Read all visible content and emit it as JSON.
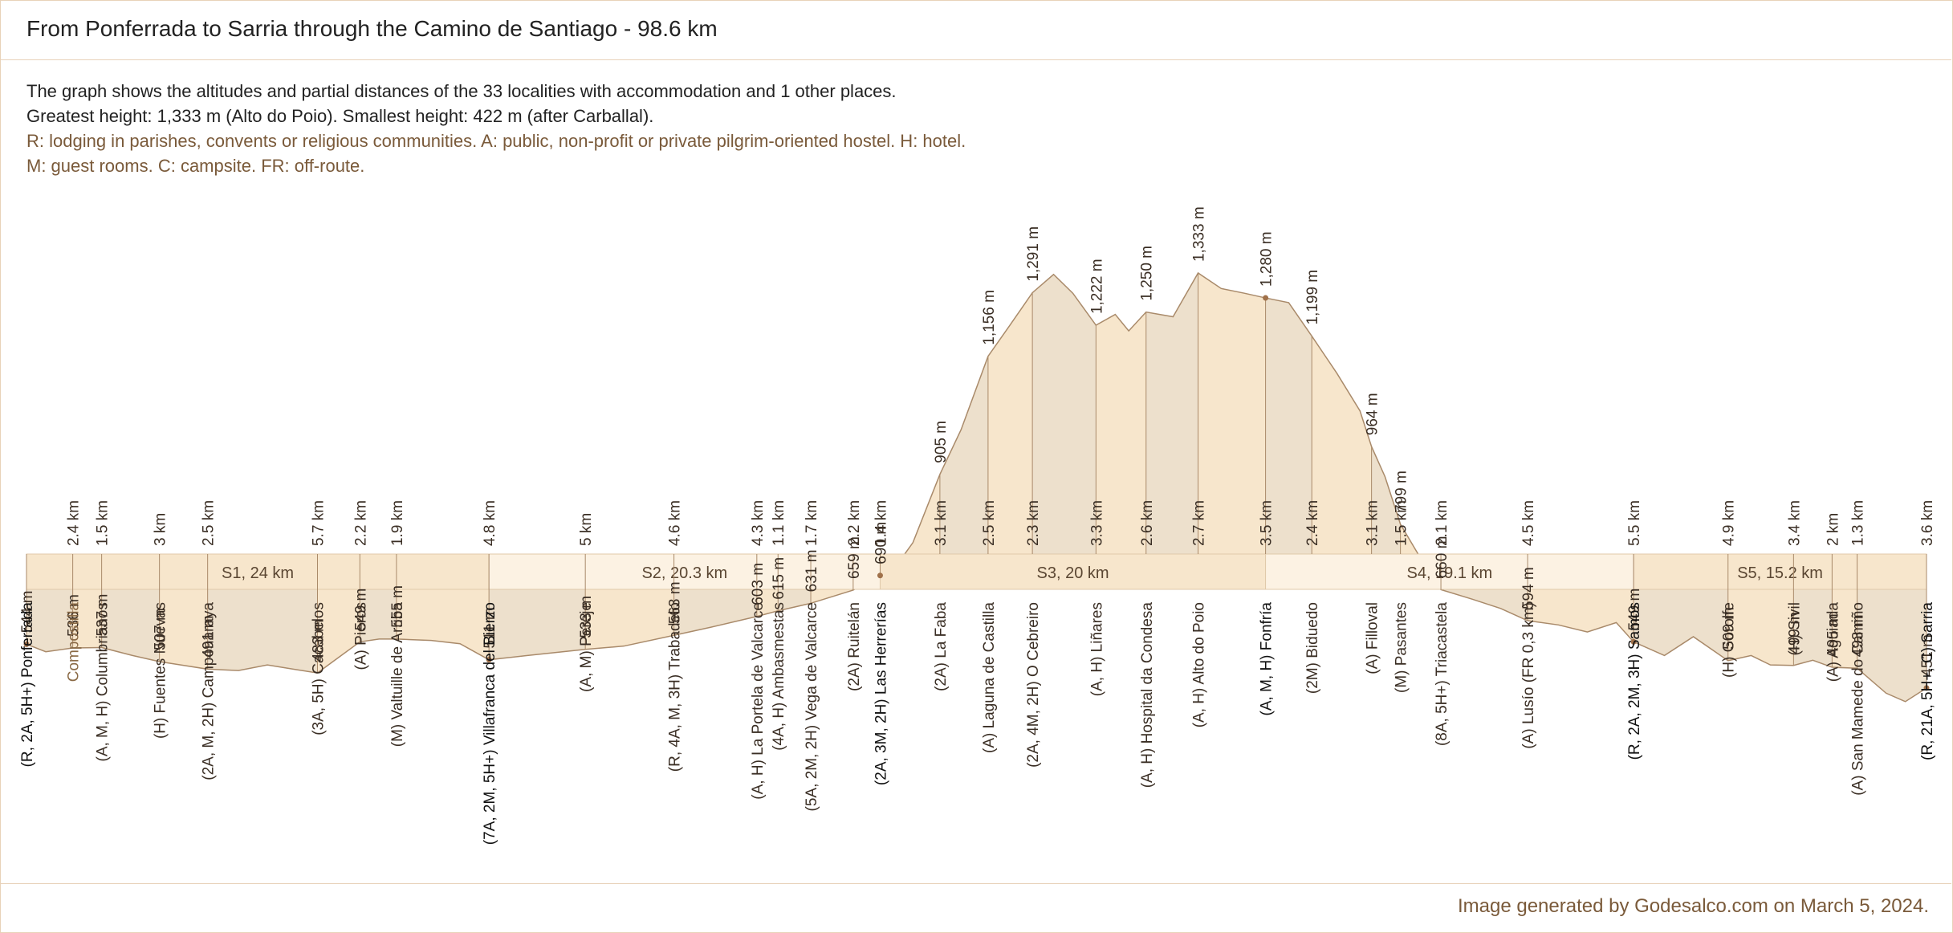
{
  "title": "From Ponferrada to Sarria through the Camino de Santiago - 98.6 km",
  "description": {
    "line1": "The graph shows the altitudes and partial distances of the 33 localities with accommodation and 1 other places.",
    "line2": "Greatest height: 1,333 m (Alto do Poio).  Smallest height: 422 m (after Carballal).",
    "line3": "R: lodging in parishes, convents or religious communities. A: public, non-profit or private pilgrim-oriented hostel. H: hotel.",
    "line4": "M: guest rooms. C: campsite. FR: off-route."
  },
  "footer": "Image generated by Godesalco.com on March 5, 2024.",
  "colors": {
    "fill_light": "#f7e6cc",
    "fill_dark": "#ede0cc",
    "line": "#a98a6a",
    "text_brown": "#7a5a3a"
  },
  "chart_data": {
    "type": "area",
    "total_km": 98.6,
    "xlim": [
      0,
      98.6
    ],
    "ylim": [
      0,
      1400
    ],
    "places": [
      {
        "name": "(R, 2A, 5H+) Ponferrada",
        "km": 0,
        "alt": 544,
        "alt_label": "544 m",
        "dist_label": "",
        "stage_end": true
      },
      {
        "name": "Compostilla",
        "km": 2.4,
        "alt": 536,
        "alt_label": "536 m",
        "dist_label": "2.4 km",
        "other": true
      },
      {
        "name": "(A, M, H) Columbrianos",
        "km": 3.9,
        "alt": 537,
        "alt_label": "537 m",
        "dist_label": "1.5 km"
      },
      {
        "name": "(H) Fuentes Nuevas",
        "km": 6.9,
        "alt": 507,
        "alt_label": "507 m",
        "dist_label": "3 km"
      },
      {
        "name": "(2A, M, 2H) Camponaraya",
        "km": 9.4,
        "alt": 491,
        "alt_label": "491 m",
        "dist_label": "2.5 km"
      },
      {
        "name": "(3A, 5H) Cacabelos",
        "km": 15.1,
        "alt": 483,
        "alt_label": "483 m",
        "dist_label": "5.7 km"
      },
      {
        "name": "(A) Pieros",
        "km": 17.3,
        "alt": 549,
        "alt_label": "549 m",
        "dist_label": "2.2 km"
      },
      {
        "name": "(M) Valtuille de Arriba",
        "km": 19.2,
        "alt": 555,
        "alt_label": "555 m",
        "dist_label": "1.9 km"
      },
      {
        "name": "(7A, 2M, 5H+) Villafranca del Bierzo",
        "km": 24,
        "alt": 511,
        "alt_label": "511 m",
        "dist_label": "4.8 km",
        "stage_end": true
      },
      {
        "name": "(A, M) Pereje",
        "km": 29,
        "alt": 533,
        "alt_label": "533 m",
        "dist_label": "5 km"
      },
      {
        "name": "(R, 4A, M, 3H) Trabadelo",
        "km": 33.6,
        "alt": 563,
        "alt_label": "563 m",
        "dist_label": "4.6 km"
      },
      {
        "name": "(A, H) La Portela de Valcarce",
        "km": 37.9,
        "alt": 603,
        "alt_label": "603 m",
        "dist_label": "4.3 km"
      },
      {
        "name": "(4A, H) Ambasmestas",
        "km": 39,
        "alt": 615,
        "alt_label": "615 m",
        "dist_label": "1.1 km"
      },
      {
        "name": "(5A, 2M, 2H) Vega de Valcarce",
        "km": 40.7,
        "alt": 631,
        "alt_label": "631 m",
        "dist_label": "1.7 km"
      },
      {
        "name": "(2A) Ruitelán",
        "km": 42.9,
        "alt": 659,
        "alt_label": "659 m",
        "dist_label": "2.2 km"
      },
      {
        "name": "(2A, 3M, 2H) Las Herrerías",
        "km": 44.3,
        "alt": 690,
        "alt_label": "690 m",
        "dist_label": "1.4 km",
        "stage_end": true
      },
      {
        "name": "(2A) La Faba",
        "km": 47.4,
        "alt": 905,
        "alt_label": "905 m",
        "dist_label": "3.1 km"
      },
      {
        "name": "(A) Laguna de Castilla",
        "km": 49.9,
        "alt": 1156,
        "alt_label": "1,156 m",
        "dist_label": "2.5 km"
      },
      {
        "name": "(2A, 4M, 2H) O Cebreiro",
        "km": 52.2,
        "alt": 1291,
        "alt_label": "1,291 m",
        "dist_label": "2.3 km"
      },
      {
        "name": "(A, H) Liñares",
        "km": 55.5,
        "alt": 1222,
        "alt_label": "1,222 m",
        "dist_label": "3.3 km"
      },
      {
        "name": "(A, H) Hospital da Condesa",
        "km": 58.1,
        "alt": 1250,
        "alt_label": "1,250 m",
        "dist_label": "2.6 km"
      },
      {
        "name": "(A, H) Alto do Poio",
        "km": 60.8,
        "alt": 1333,
        "alt_label": "1,333 m",
        "dist_label": "2.7 km"
      },
      {
        "name": "(A, M, H) Fonfría",
        "km": 64.3,
        "alt": 1280,
        "alt_label": "1,280 m",
        "dist_label": "3.5 km",
        "stage_end": true
      },
      {
        "name": "(2M) Biduedo",
        "km": 66.7,
        "alt": 1199,
        "alt_label": "1,199 m",
        "dist_label": "2.4 km"
      },
      {
        "name": "(A) Filloval",
        "km": 69.8,
        "alt": 964,
        "alt_label": "964 m",
        "dist_label": "3.1 km"
      },
      {
        "name": "(M) Pasantes",
        "km": 71.3,
        "alt": 799,
        "alt_label": "799 m",
        "dist_label": "1.5 km"
      },
      {
        "name": "(8A, 5H+) Triacastela",
        "km": 73.4,
        "alt": 660,
        "alt_label": "660 m",
        "dist_label": "2.1 km"
      },
      {
        "name": "(A) Lusío (FR 0,3 km)",
        "km": 77.9,
        "alt": 594,
        "alt_label": "594 m",
        "dist_label": "4.5 km"
      },
      {
        "name": "(R, 2A, 2M, 3H) Samos",
        "km": 83.4,
        "alt": 549,
        "alt_label": "549 m",
        "dist_label": "5.5 km",
        "stage_end": true
      },
      {
        "name": "(H) Gorolfe",
        "km": 88.3,
        "alt": 509,
        "alt_label": "509 m",
        "dist_label": "4.9 km"
      },
      {
        "name": "(H) Sivil",
        "km": 91.7,
        "alt": 499,
        "alt_label": "499 m",
        "dist_label": "3.4 km"
      },
      {
        "name": "(A) Aguiada",
        "km": 93.7,
        "alt": 495,
        "alt_label": "495 m",
        "dist_label": "2 km"
      },
      {
        "name": "(A) San Mamede do Camiño",
        "km": 95,
        "alt": 493,
        "alt_label": "493 m",
        "dist_label": "1.3 km"
      },
      {
        "name": "(R, 21A, 5H+, C) Sarria",
        "km": 98.6,
        "alt": 451,
        "alt_label": "451 m",
        "dist_label": "3.6 km",
        "stage_end": true
      }
    ],
    "profile": [
      [
        0,
        544
      ],
      [
        1,
        528
      ],
      [
        2.4,
        536
      ],
      [
        3.9,
        537
      ],
      [
        5.5,
        520
      ],
      [
        6.9,
        507
      ],
      [
        8,
        500
      ],
      [
        9.4,
        491
      ],
      [
        11,
        488
      ],
      [
        12.5,
        500
      ],
      [
        14,
        490
      ],
      [
        15.1,
        483
      ],
      [
        16,
        510
      ],
      [
        17.3,
        549
      ],
      [
        18.3,
        555
      ],
      [
        19.2,
        555
      ],
      [
        21,
        552
      ],
      [
        22.5,
        545
      ],
      [
        24,
        511
      ],
      [
        26,
        520
      ],
      [
        29,
        533
      ],
      [
        31,
        540
      ],
      [
        33.6,
        563
      ],
      [
        35.5,
        580
      ],
      [
        37.9,
        603
      ],
      [
        39,
        615
      ],
      [
        40.7,
        631
      ],
      [
        42.9,
        659
      ],
      [
        44.3,
        690
      ],
      [
        45.3,
        720
      ],
      [
        46,
        760
      ],
      [
        47.4,
        905
      ],
      [
        48.5,
        1000
      ],
      [
        49.9,
        1156
      ],
      [
        51,
        1220
      ],
      [
        52.2,
        1291
      ],
      [
        53.3,
        1330
      ],
      [
        54.3,
        1290
      ],
      [
        55.5,
        1222
      ],
      [
        56.5,
        1245
      ],
      [
        57.2,
        1210
      ],
      [
        58.1,
        1250
      ],
      [
        59.5,
        1240
      ],
      [
        60.8,
        1333
      ],
      [
        62,
        1300
      ],
      [
        63.2,
        1290
      ],
      [
        64.3,
        1280
      ],
      [
        65.5,
        1270
      ],
      [
        66.7,
        1199
      ],
      [
        68,
        1120
      ],
      [
        69.2,
        1040
      ],
      [
        69.8,
        964
      ],
      [
        70.5,
        900
      ],
      [
        71.3,
        799
      ],
      [
        72.3,
        730
      ],
      [
        73.4,
        660
      ],
      [
        75,
        640
      ],
      [
        76.5,
        620
      ],
      [
        77.9,
        594
      ],
      [
        79.5,
        585
      ],
      [
        81,
        570
      ],
      [
        82.5,
        590
      ],
      [
        83.4,
        549
      ],
      [
        85,
        520
      ],
      [
        86.5,
        560
      ],
      [
        88.3,
        509
      ],
      [
        89.5,
        520
      ],
      [
        90.5,
        500
      ],
      [
        91.7,
        499
      ],
      [
        92.7,
        510
      ],
      [
        93.7,
        495
      ],
      [
        95,
        493
      ],
      [
        96.5,
        440
      ],
      [
        97.5,
        422
      ],
      [
        98.6,
        451
      ]
    ],
    "stages": [
      {
        "label": "S1, 24 km",
        "start_km": 0,
        "end_km": 24
      },
      {
        "label": "S2, 20.3 km",
        "start_km": 24,
        "end_km": 44.3
      },
      {
        "label": "S3, 20 km",
        "start_km": 44.3,
        "end_km": 64.3
      },
      {
        "label": "S4, 19.1 km",
        "start_km": 64.3,
        "end_km": 83.4
      },
      {
        "label": "S5, 15.2 km",
        "start_km": 83.4,
        "end_km": 98.6
      }
    ]
  }
}
